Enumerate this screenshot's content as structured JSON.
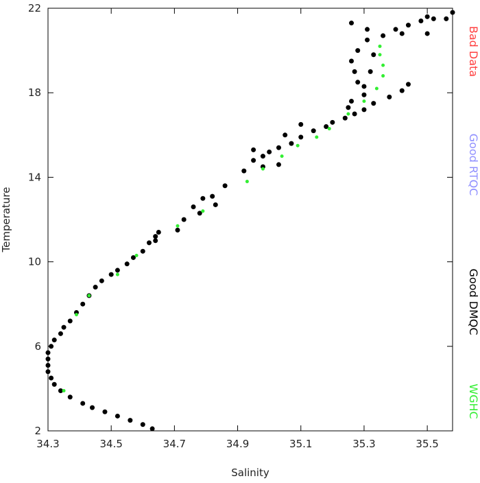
{
  "chart_data": {
    "type": "scatter",
    "x_label": "Salinity",
    "y_label": "Temperature",
    "xlim": [
      34.3,
      35.58
    ],
    "ylim": [
      2,
      22
    ],
    "xticks": [
      34.3,
      34.5,
      34.7,
      34.9,
      35.1,
      35.3,
      35.5
    ],
    "yticks": [
      2,
      6,
      10,
      14,
      18,
      22
    ],
    "series": [
      {
        "name": "Bad Data",
        "color": "#ff4040",
        "x": [],
        "values": []
      },
      {
        "name": "Good RTQC",
        "color": "#9090ff",
        "x": [],
        "values": []
      },
      {
        "name": "Good DMQC",
        "color": "#000000",
        "x": [
          34.63,
          34.6,
          34.56,
          34.52,
          34.48,
          34.44,
          34.41,
          34.37,
          34.34,
          34.32,
          34.31,
          34.3,
          34.3,
          34.3,
          34.3,
          34.31,
          34.32,
          34.34,
          34.35,
          34.37,
          34.39,
          34.41,
          34.43,
          34.45,
          34.47,
          34.5,
          34.52,
          34.55,
          34.57,
          34.6,
          34.62,
          34.64,
          34.65,
          34.64,
          34.71,
          34.73,
          34.76,
          34.79,
          34.78,
          34.82,
          34.83,
          34.86,
          34.92,
          34.95,
          34.98,
          35.0,
          35.03,
          35.07,
          35.1,
          35.14,
          35.18,
          35.2,
          35.24,
          35.27,
          35.3,
          35.33,
          35.38,
          35.42,
          35.44,
          35.26,
          35.3,
          34.98,
          35.03,
          34.95,
          35.05,
          35.28,
          35.27,
          35.26,
          35.28,
          35.33,
          35.32,
          35.3,
          35.31,
          35.31,
          35.26,
          35.36,
          35.4,
          35.44,
          35.42,
          35.48,
          35.52,
          35.5,
          35.5,
          35.58,
          35.56,
          35.1,
          35.25
        ],
        "values": [
          2.1,
          2.3,
          2.5,
          2.7,
          2.9,
          3.1,
          3.3,
          3.6,
          3.9,
          4.2,
          4.5,
          4.8,
          5.1,
          5.4,
          5.7,
          6.0,
          6.3,
          6.6,
          6.9,
          7.2,
          7.6,
          8.0,
          8.4,
          8.8,
          9.1,
          9.4,
          9.6,
          9.9,
          10.2,
          10.5,
          10.9,
          11.2,
          11.4,
          11.0,
          11.5,
          12.0,
          12.6,
          13.0,
          12.3,
          13.1,
          12.7,
          13.6,
          14.3,
          14.8,
          15.0,
          15.2,
          15.4,
          15.6,
          15.9,
          16.2,
          16.4,
          16.6,
          16.8,
          17.0,
          17.2,
          17.5,
          17.8,
          18.1,
          18.4,
          17.6,
          17.9,
          14.5,
          14.6,
          15.3,
          16.0,
          18.5,
          19.0,
          19.5,
          20.0,
          19.8,
          19.0,
          18.3,
          20.5,
          21.0,
          21.3,
          20.7,
          21.0,
          21.2,
          20.8,
          21.4,
          21.5,
          21.6,
          20.8,
          21.8,
          21.5,
          16.5,
          17.3
        ]
      },
      {
        "name": "WGHC",
        "color": "#33ee33",
        "x": [
          34.35,
          34.39,
          34.43,
          34.52,
          34.58,
          34.71,
          34.79,
          34.93,
          34.98,
          35.04,
          35.09,
          35.15,
          35.19,
          35.25,
          35.3,
          35.34,
          35.36,
          35.36,
          35.35,
          35.35
        ],
        "values": [
          3.9,
          7.5,
          8.4,
          9.4,
          10.3,
          11.7,
          12.4,
          13.8,
          14.4,
          15.0,
          15.5,
          15.9,
          16.3,
          17.0,
          17.6,
          18.2,
          18.8,
          19.3,
          19.8,
          20.2
        ]
      }
    ]
  }
}
